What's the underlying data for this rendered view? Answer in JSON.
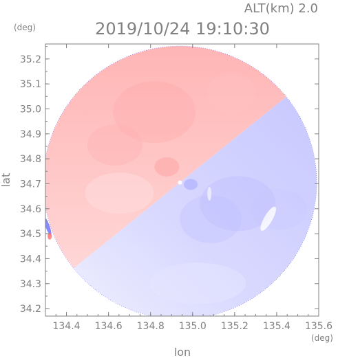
{
  "header": {
    "altitude_label": "ALT(km) 2.0",
    "timestamp": "2019/10/24 19:10:30",
    "y_unit": "(deg)",
    "x_unit": "(deg)"
  },
  "chart_data": {
    "type": "heatmap",
    "xlabel": "lon",
    "ylabel": "lat",
    "xlim": [
      134.3,
      135.6
    ],
    "ylim": [
      34.17,
      35.26
    ],
    "x_ticks": [
      "134.4",
      "134.6",
      "134.8",
      "135.0",
      "135.2",
      "135.4",
      "135.6"
    ],
    "y_ticks": [
      "34.2",
      "34.3",
      "34.4",
      "34.5",
      "34.6",
      "34.7",
      "34.8",
      "34.9",
      "35.0",
      "35.1",
      "35.2"
    ],
    "radar_center": {
      "lon": 134.94,
      "lat": 34.705
    },
    "coverage_radius_deg_lon": 0.65,
    "colors": {
      "positive": "#ff8f8f",
      "negative": "#8c8cff",
      "zero": "#ffffff",
      "axis": "#808080",
      "edge": "#4b4bff"
    }
  }
}
